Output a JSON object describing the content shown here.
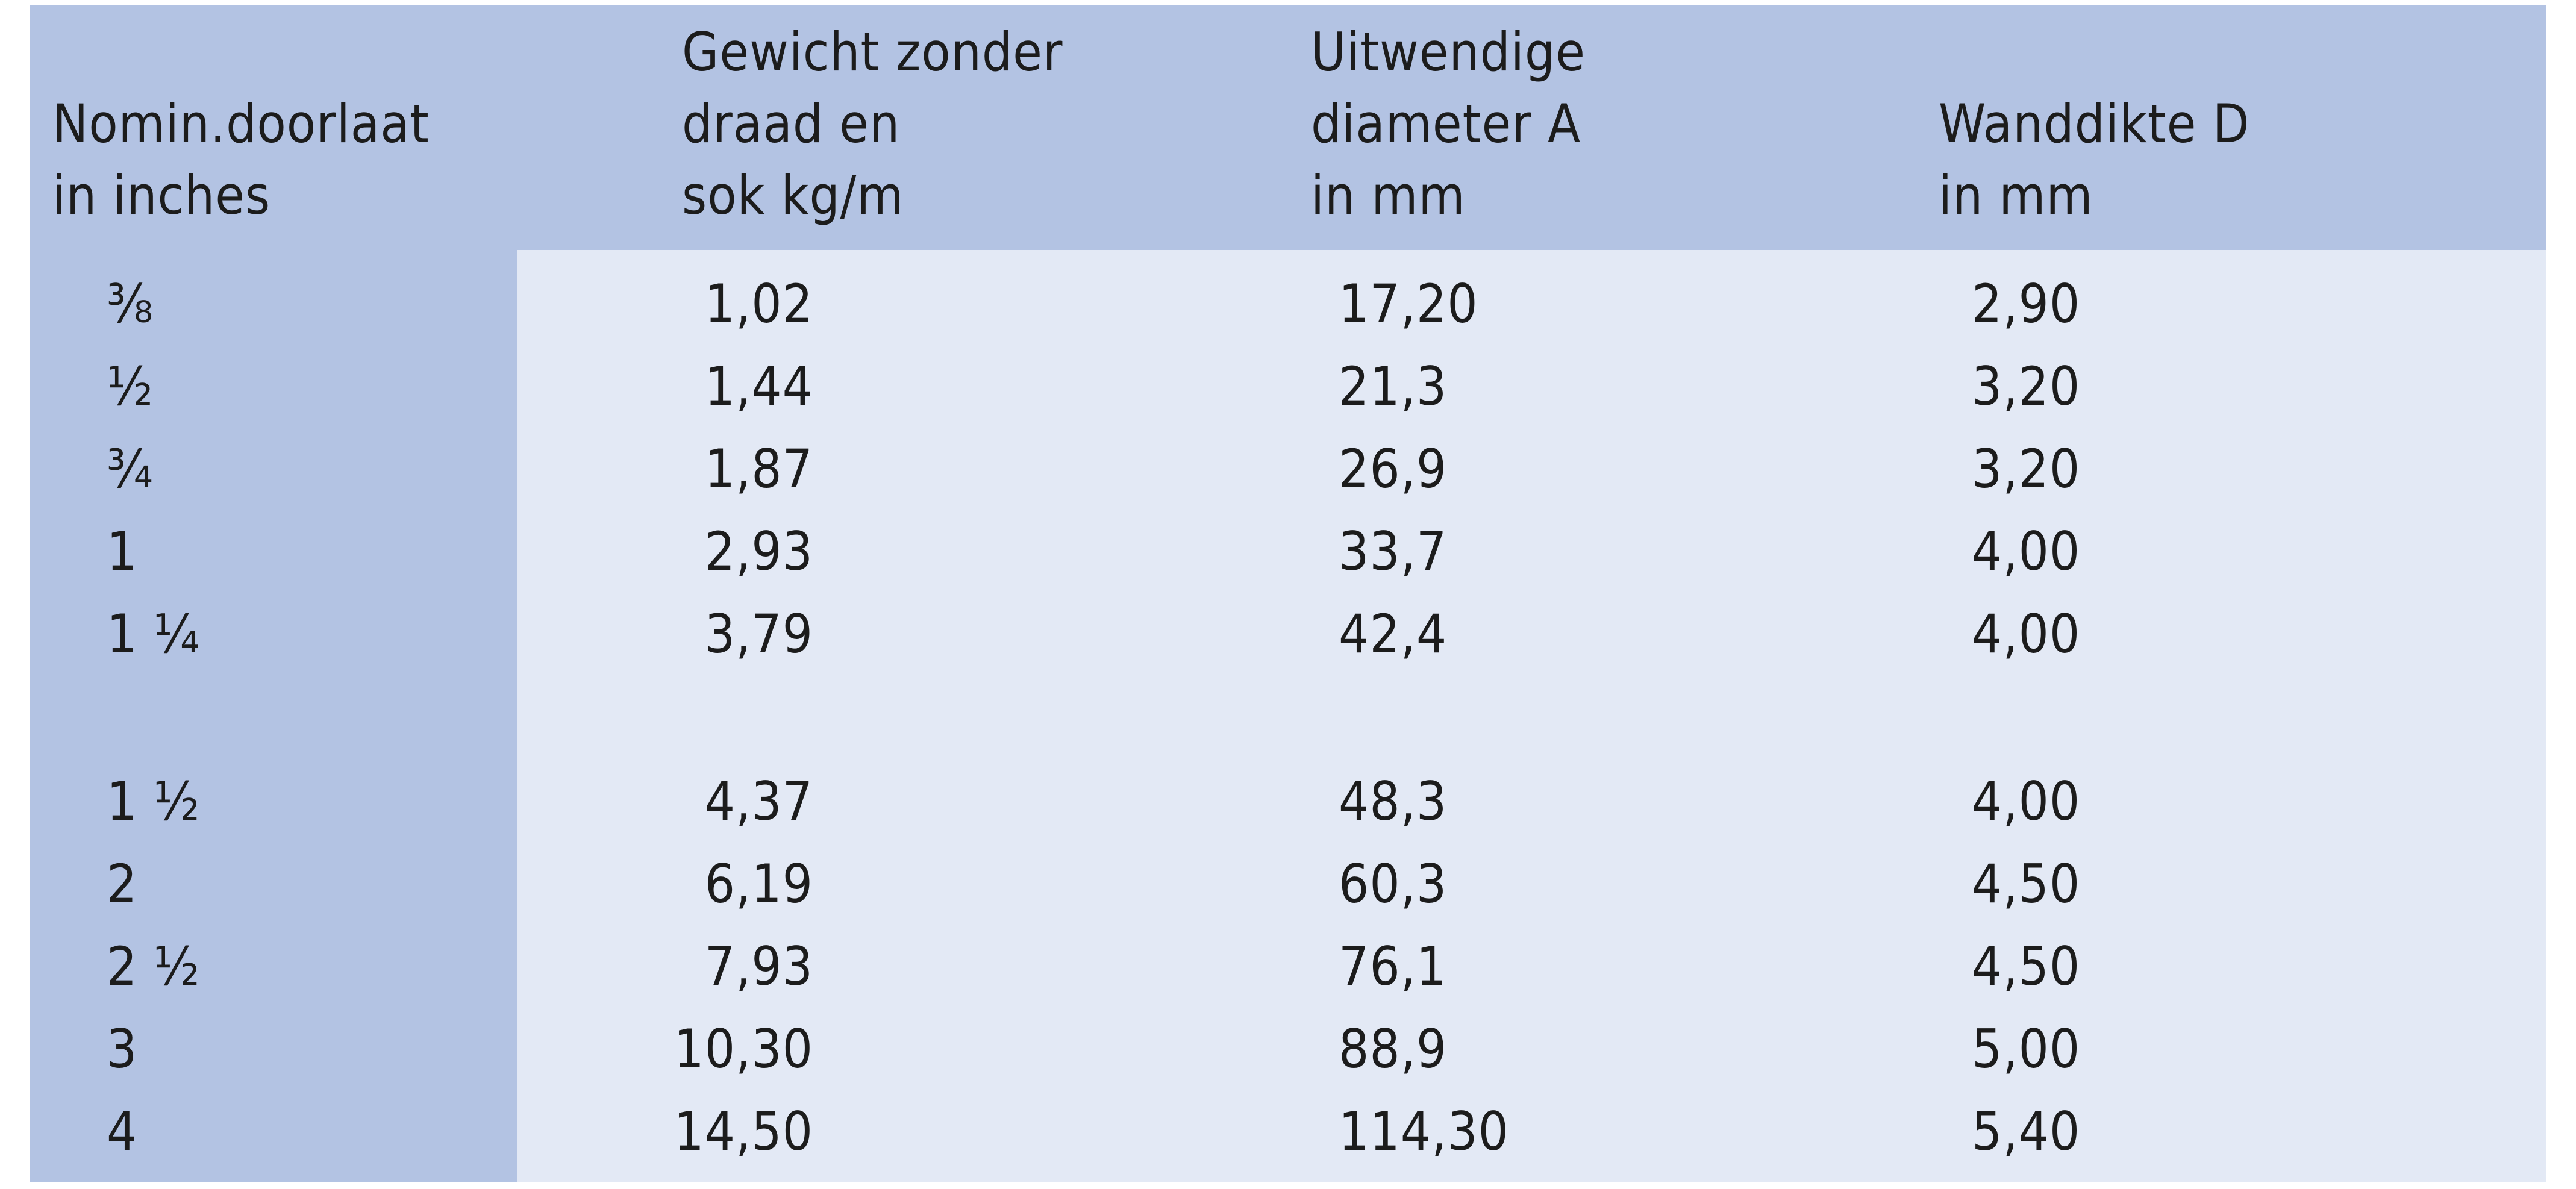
{
  "table": {
    "header": [
      [
        "Nomin.doorlaat",
        "in inches"
      ],
      [
        "Gewicht zonder",
        "draad en",
        "sok kg/m"
      ],
      [
        "Uitwendige",
        "diameter A",
        "in mm"
      ],
      [
        "Wanddikte D",
        "in mm"
      ]
    ],
    "row_groups": [
      [
        [
          "⅜",
          "1,02",
          "17,20",
          "2,90"
        ],
        [
          "½",
          "1,44",
          "21,3",
          "3,20"
        ],
        [
          "¾",
          "1,87",
          "26,9",
          "3,20"
        ],
        [
          "1",
          "2,93",
          "33,7",
          "4,00"
        ],
        [
          "1 ¼",
          "3,79",
          "42,4",
          "4,00"
        ]
      ],
      [
        [
          "1 ½",
          "4,37",
          "48,3",
          "4,00"
        ],
        [
          "2",
          "6,19",
          "60,3",
          "4,50"
        ],
        [
          "2 ½",
          "7,93",
          "76,1",
          "4,50"
        ],
        [
          "3",
          "10,30",
          "88,9",
          "5,00"
        ],
        [
          "4",
          "14,50",
          "114,30",
          "5,40"
        ]
      ]
    ]
  }
}
